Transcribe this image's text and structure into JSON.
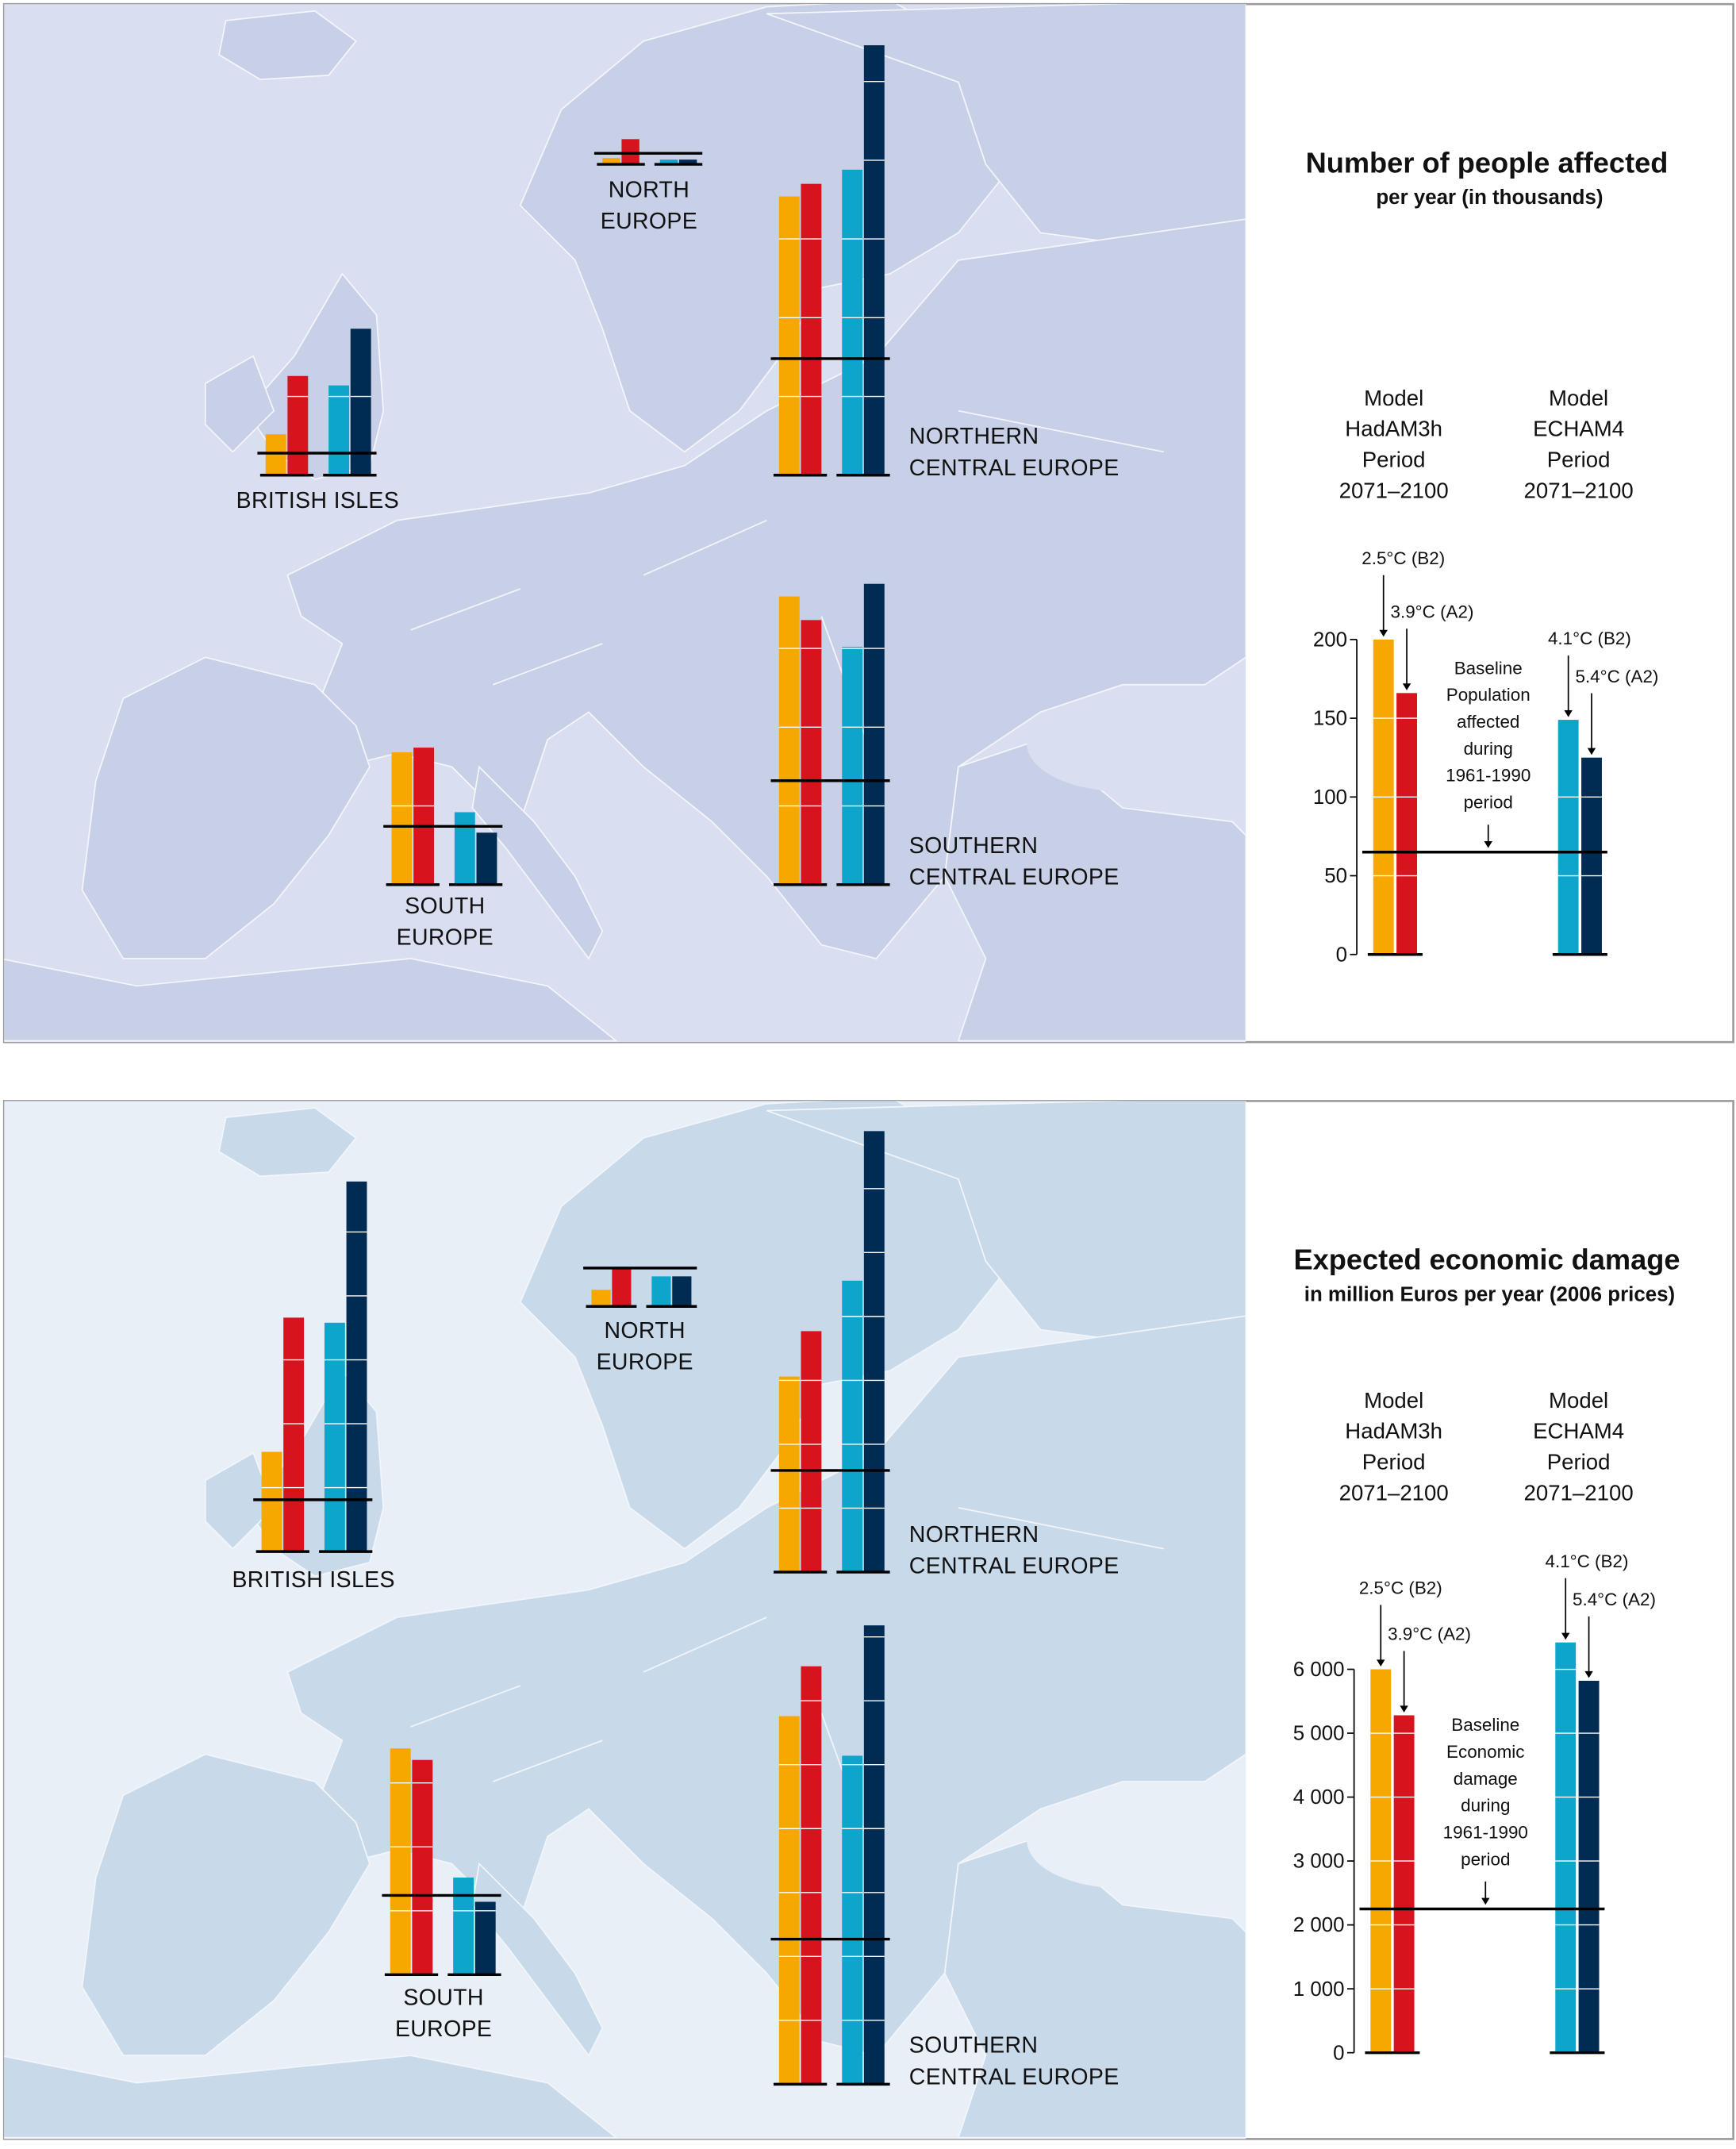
{
  "colors": {
    "hadam3h_b2": "#f6a800",
    "hadam3h_a2": "#d7141d",
    "echam4_b2": "#0ea5cc",
    "echam4_a2": "#002b52",
    "baseline_line": "#000000"
  },
  "chart_data": [
    {
      "type": "bar",
      "title": "Number of people affected",
      "subtitle": "per year (in thousands)",
      "models": [
        {
          "lines": [
            "Model",
            "HadAM3h",
            "Period",
            "2071–2100"
          ]
        },
        {
          "lines": [
            "Model",
            "ECHAM4",
            "Period",
            "2071–2100"
          ]
        }
      ],
      "scenario_labels": [
        "2.5°C (B2)",
        "3.9°C (A2)",
        "4.1°C (B2)",
        "5.4°C (A2)"
      ],
      "baseline_label": [
        "Baseline",
        "Population",
        "affected",
        "during",
        "1961-1990",
        "period"
      ],
      "ylim": [
        0,
        200
      ],
      "yticks": [
        "0",
        "50",
        "100",
        "150",
        "200"
      ],
      "ytick_values": [
        0,
        50,
        100,
        150,
        200
      ],
      "legend_values": [
        200,
        166,
        149,
        125
      ],
      "legend_baseline": 65,
      "regions": [
        {
          "name": [
            "NORTH",
            "EUROPE"
          ],
          "baseline": 7,
          "values": [
            4,
            16,
            3,
            3
          ]
        },
        {
          "name": [
            "BRITISH ISLES"
          ],
          "baseline": 14,
          "values": [
            26,
            63,
            57,
            93
          ]
        },
        {
          "name": [
            "NORTHERN",
            "CENTRAL EUROPE"
          ],
          "baseline": 74,
          "values": [
            177,
            185,
            194,
            273
          ]
        },
        {
          "name": [
            "SOUTHERN",
            "CENTRAL EUROPE"
          ],
          "baseline": 66,
          "values": [
            183,
            168,
            151,
            191
          ]
        },
        {
          "name": [
            "SOUTH",
            "EUROPE"
          ],
          "baseline": 37,
          "values": [
            84,
            87,
            46,
            33
          ]
        }
      ]
    },
    {
      "type": "bar",
      "title": "Expected economic damage",
      "subtitle": "in million Euros per year (2006 prices)",
      "models": [
        {
          "lines": [
            "Model",
            "HadAM3h",
            "Period",
            "2071–2100"
          ]
        },
        {
          "lines": [
            "Model",
            "ECHAM4",
            "Period",
            "2071–2100"
          ]
        }
      ],
      "scenario_labels": [
        "2.5°C (B2)",
        "3.9°C (A2)",
        "4.1°C (B2)",
        "5.4°C (A2)"
      ],
      "baseline_label": [
        "Baseline",
        "Economic",
        "damage",
        "during",
        "1961-1990",
        "period"
      ],
      "ylim": [
        0,
        6000
      ],
      "yticks": [
        "0",
        "1 000",
        "2 000",
        "3 000",
        "4 000",
        "5 000",
        "6 000"
      ],
      "ytick_values": [
        0,
        1000,
        2000,
        3000,
        4000,
        5000,
        6000
      ],
      "legend_values": [
        6000,
        5280,
        6420,
        5820
      ],
      "legend_baseline": 2250,
      "regions": [
        {
          "name": [
            "NORTH",
            "EUROPE"
          ],
          "baseline": 600,
          "values": [
            260,
            580,
            470,
            470
          ]
        },
        {
          "name": [
            "BRITISH ISLES"
          ],
          "baseline": 810,
          "values": [
            1560,
            3660,
            3580,
            5790
          ]
        },
        {
          "name": [
            "NORTHERN",
            "CENTRAL EUROPE"
          ],
          "baseline": 1590,
          "values": [
            3060,
            3770,
            4560,
            6900
          ]
        },
        {
          "name": [
            "SOUTHERN",
            "CENTRAL EUROPE"
          ],
          "baseline": 2270,
          "values": [
            5760,
            6540,
            5140,
            7180
          ]
        },
        {
          "name": [
            "SOUTH",
            "EUROPE"
          ],
          "baseline": 1240,
          "values": [
            3540,
            3360,
            1520,
            1140
          ]
        }
      ]
    }
  ]
}
